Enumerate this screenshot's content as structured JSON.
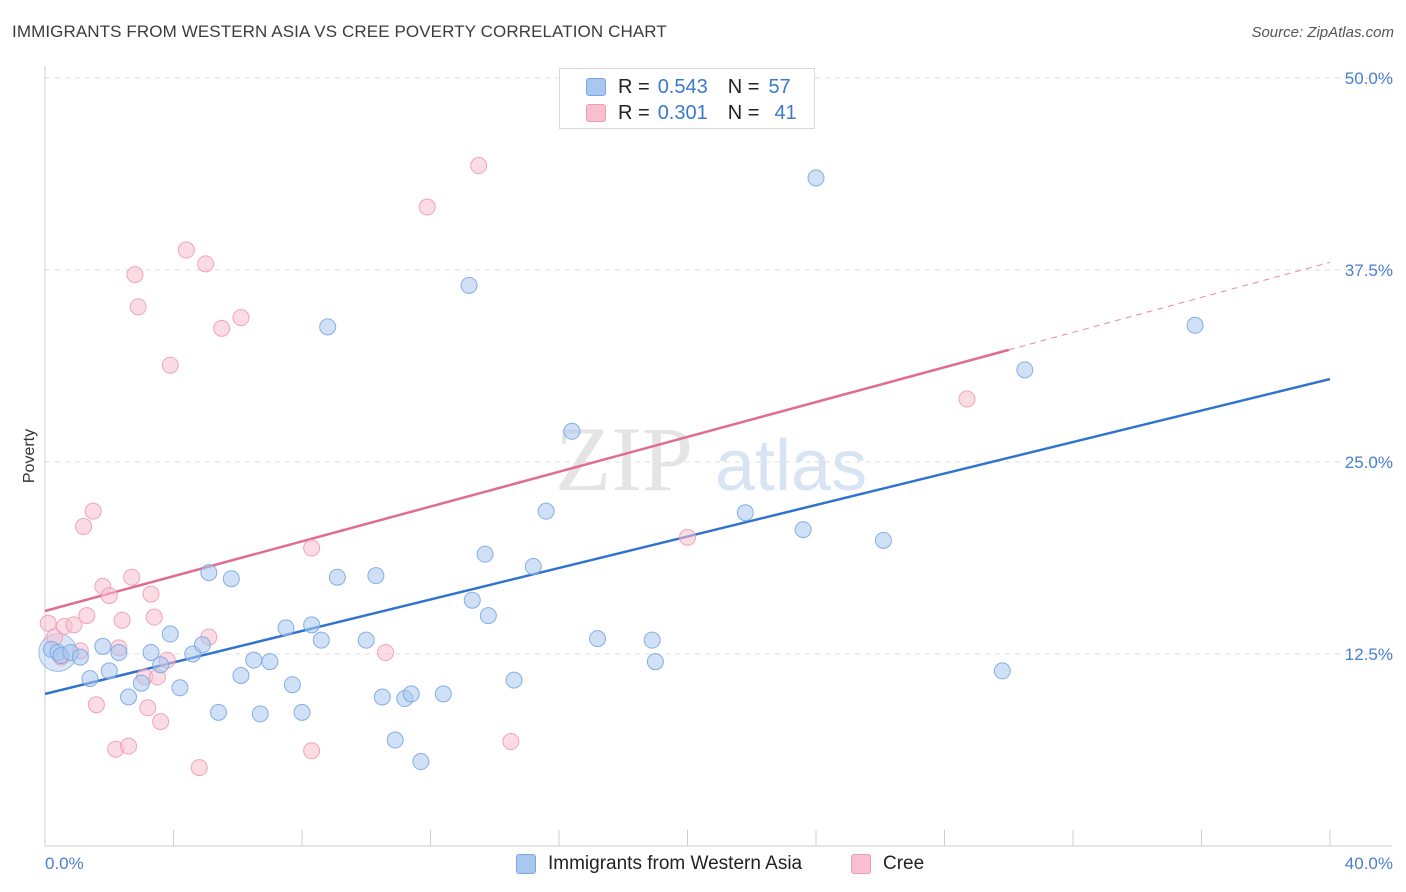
{
  "header": {
    "title": "IMMIGRANTS FROM WESTERN ASIA VS CREE POVERTY CORRELATION CHART",
    "source": "Source: ZipAtlas.com"
  },
  "watermark": {
    "zip": "ZIP",
    "atlas": "atlas"
  },
  "legend": {
    "rows": [
      {
        "r_label": "R =",
        "r_value": "0.543",
        "n_label": "N =",
        "n_value": "57",
        "color": "#a9c8f0",
        "stroke": "#7aa6e3"
      },
      {
        "r_label": "R =",
        "r_value": "0.301",
        "n_label": "N =",
        "n_value": "41",
        "color": "#f8bfd0",
        "stroke": "#ee9bb4"
      }
    ]
  },
  "bottom_legend": {
    "items": [
      {
        "label": "Immigrants from Western Asia",
        "color": "#a9c8f0",
        "stroke": "#7aa6e3"
      },
      {
        "label": "Cree",
        "color": "#f8bfd0",
        "stroke": "#ee9bb4"
      }
    ]
  },
  "chart_data": {
    "type": "scatter",
    "title": "IMMIGRANTS FROM WESTERN ASIA VS CREE POVERTY CORRELATION CHART",
    "ylabel": "Poverty",
    "xlabel": "",
    "xlim": [
      0,
      40
    ],
    "ylim": [
      0,
      50
    ],
    "x_tick_labels": [
      "0.0%",
      "40.0%"
    ],
    "y_ticks": [
      12.5,
      25.0,
      37.5,
      50.0
    ],
    "y_tick_labels": [
      "12.5%",
      "25.0%",
      "37.5%",
      "50.0%"
    ],
    "grid": true,
    "legend_position": "top-center",
    "colors": {
      "blue_fill": "#a9c8f0",
      "blue_stroke": "#7aa6e3",
      "blue_line": "#2f72d0",
      "pink_fill": "#f8bfd0",
      "pink_stroke": "#ee9bb4",
      "pink_line": "#e06c92"
    },
    "series": [
      {
        "name": "Immigrants from Western Asia",
        "r": 0.543,
        "n": 57,
        "points": [
          [
            0.2,
            12.8
          ],
          [
            0.4,
            12.6
          ],
          [
            0.5,
            12.4
          ],
          [
            0.8,
            12.6
          ],
          [
            1.1,
            12.3
          ],
          [
            1.4,
            10.9
          ],
          [
            1.8,
            13.0
          ],
          [
            2.0,
            11.4
          ],
          [
            2.3,
            12.6
          ],
          [
            2.6,
            9.7
          ],
          [
            3.0,
            10.6
          ],
          [
            3.3,
            12.6
          ],
          [
            3.6,
            11.8
          ],
          [
            3.9,
            13.8
          ],
          [
            4.2,
            10.3
          ],
          [
            4.6,
            12.5
          ],
          [
            4.9,
            13.1
          ],
          [
            5.1,
            17.8
          ],
          [
            5.4,
            8.7
          ],
          [
            5.8,
            17.4
          ],
          [
            6.1,
            11.1
          ],
          [
            6.5,
            12.1
          ],
          [
            6.7,
            8.6
          ],
          [
            7.0,
            12.0
          ],
          [
            7.5,
            14.2
          ],
          [
            7.7,
            10.5
          ],
          [
            8.0,
            8.7
          ],
          [
            8.3,
            14.4
          ],
          [
            8.6,
            13.4
          ],
          [
            8.8,
            33.8
          ],
          [
            9.1,
            17.5
          ],
          [
            10.0,
            13.4
          ],
          [
            10.3,
            17.6
          ],
          [
            10.5,
            9.7
          ],
          [
            10.9,
            6.9
          ],
          [
            11.2,
            9.6
          ],
          [
            11.4,
            9.9
          ],
          [
            11.7,
            5.5
          ],
          [
            12.4,
            9.9
          ],
          [
            13.2,
            36.5
          ],
          [
            13.3,
            16.0
          ],
          [
            13.7,
            19.0
          ],
          [
            13.8,
            15.0
          ],
          [
            14.6,
            10.8
          ],
          [
            15.2,
            18.2
          ],
          [
            15.6,
            21.8
          ],
          [
            16.4,
            27.0
          ],
          [
            17.2,
            13.5
          ],
          [
            18.9,
            13.4
          ],
          [
            19.0,
            12.0
          ],
          [
            21.8,
            21.7
          ],
          [
            23.6,
            20.6
          ],
          [
            24.0,
            43.5
          ],
          [
            26.1,
            19.9
          ],
          [
            29.8,
            11.4
          ],
          [
            30.5,
            31.0
          ],
          [
            35.8,
            33.9
          ]
        ]
      },
      {
        "name": "Cree",
        "r": 0.301,
        "n": 41,
        "points": [
          [
            0.1,
            14.5
          ],
          [
            0.3,
            13.6
          ],
          [
            0.5,
            12.3
          ],
          [
            0.6,
            14.3
          ],
          [
            0.9,
            14.4
          ],
          [
            1.1,
            12.7
          ],
          [
            1.3,
            15.0
          ],
          [
            1.5,
            21.8
          ],
          [
            1.6,
            9.2
          ],
          [
            1.2,
            20.8
          ],
          [
            1.8,
            16.9
          ],
          [
            2.0,
            16.3
          ],
          [
            2.3,
            12.9
          ],
          [
            2.2,
            6.3
          ],
          [
            2.4,
            14.7
          ],
          [
            2.6,
            6.5
          ],
          [
            2.7,
            17.5
          ],
          [
            2.8,
            37.2
          ],
          [
            2.9,
            35.1
          ],
          [
            3.1,
            11.0
          ],
          [
            3.4,
            14.9
          ],
          [
            3.3,
            16.4
          ],
          [
            3.5,
            11.0
          ],
          [
            3.6,
            8.1
          ],
          [
            3.8,
            12.1
          ],
          [
            3.9,
            31.3
          ],
          [
            4.4,
            38.8
          ],
          [
            4.8,
            5.1
          ],
          [
            5.0,
            37.9
          ],
          [
            5.1,
            13.6
          ],
          [
            5.5,
            33.7
          ],
          [
            8.3,
            19.4
          ],
          [
            8.3,
            6.2
          ],
          [
            10.6,
            12.6
          ],
          [
            11.9,
            41.6
          ],
          [
            13.5,
            44.3
          ],
          [
            14.5,
            6.8
          ],
          [
            20.0,
            20.1
          ],
          [
            28.7,
            29.1
          ],
          [
            6.1,
            34.4
          ],
          [
            3.2,
            9.0
          ]
        ]
      }
    ],
    "trendlines": [
      {
        "series": "Immigrants from Western Asia",
        "from": [
          0,
          9.9
        ],
        "to": [
          40,
          30.4
        ]
      },
      {
        "series": "Cree",
        "from": [
          0,
          15.3
        ],
        "to": [
          30,
          32.3
        ],
        "dashed_to": [
          40,
          38.0
        ]
      }
    ]
  }
}
